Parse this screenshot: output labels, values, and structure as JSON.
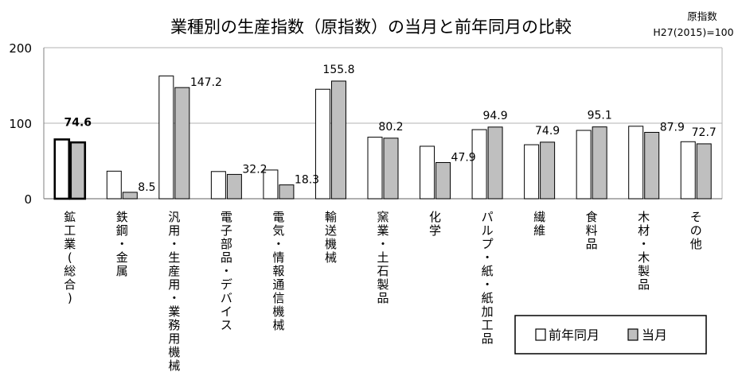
{
  "chart_data": {
    "type": "bar",
    "title": "業種別の生産指数（原指数）の当月と前年同月の比較",
    "note_lines": [
      "原指数",
      "H27(2015)=100"
    ],
    "xlabel": "",
    "ylabel": "",
    "ylim": [
      0,
      200
    ],
    "yticks": [
      0,
      100,
      200
    ],
    "grid": true,
    "legend_position": "bottom-right",
    "categories": [
      "鉱工業(総合)",
      "鉄鋼・金属",
      "汎用・生産用・業務用機械",
      "電子部品・デバイス",
      "電気・情報通信機械",
      "輸送機械",
      "窯業・土石製品",
      "化学",
      "パルプ・紙・紙加工品",
      "繊維",
      "食料品",
      "木材・木製品",
      "その他"
    ],
    "series": [
      {
        "name": "前年同月",
        "color": "#ffffff",
        "values": [
          78.5,
          36.5,
          162.5,
          36.0,
          38.0,
          145.0,
          81.5,
          69.5,
          91.5,
          71.5,
          90.5,
          96.0,
          75.5
        ]
      },
      {
        "name": "当月",
        "color": "#bfbfbf",
        "values": [
          74.6,
          8.5,
          147.2,
          32.2,
          18.3,
          155.8,
          80.2,
          47.9,
          94.9,
          74.9,
          95.1,
          87.9,
          72.7
        ]
      }
    ],
    "value_labels": [
      "74.6",
      "8.5",
      "147.2",
      "32.2",
      "18.3",
      "155.8",
      "80.2",
      "47.9",
      "94.9",
      "74.9",
      "95.1",
      "87.9",
      "72.7"
    ],
    "highlight_index": 0
  },
  "colors": {
    "grid": "#b3b3b3",
    "axis": "#808080",
    "bar_stroke": "#000000"
  }
}
